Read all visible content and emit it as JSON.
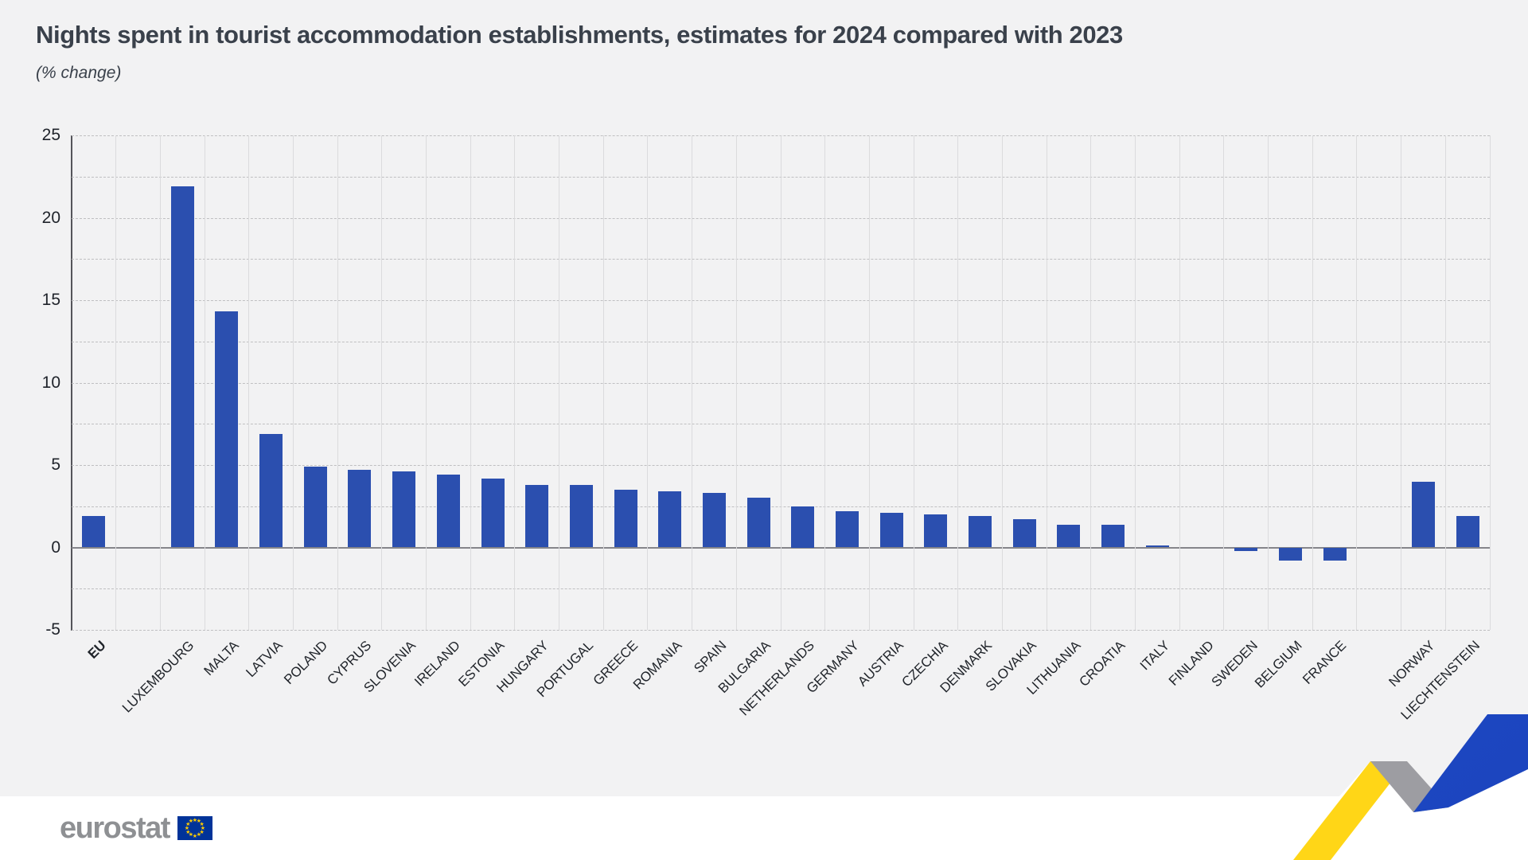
{
  "title": "Nights spent in tourist accommodation establishments, estimates for 2024 compared with 2023",
  "subtitle": "(% change)",
  "footer": {
    "logo_text": "eurostat"
  },
  "colors": {
    "background": "#F2F2F3",
    "bar": "#2B4FAF",
    "title_text": "#3A414B",
    "axis_text": "#20242B",
    "grid_dashed": "#BFBFC1",
    "grid_vertical": "#DBDBDD",
    "zero_line": "#85858A",
    "axis_line": "#55555A",
    "footer_background": "#FFFFFF",
    "logo_gray": "#8E9093",
    "flag_blue": "#003399",
    "flag_stars": "#FFCC00",
    "ribbon_yellow": "#FFD617",
    "ribbon_blue": "#2458D2"
  },
  "chart_data": {
    "type": "bar",
    "title": "Nights spent in tourist accommodation establishments, estimates for 2024 compared with 2023",
    "subtitle": "(% change)",
    "xlabel": "",
    "ylabel": "% change",
    "ylim": [
      -5,
      25
    ],
    "ytick_labels": [
      25,
      20,
      15,
      10,
      5,
      0,
      -5
    ],
    "gridline_step": 2.5,
    "grid": true,
    "legend": false,
    "categories": [
      "EU",
      "LUXEMBOURG",
      "MALTA",
      "LATVIA",
      "POLAND",
      "CYPRUS",
      "SLOVENIA",
      "IRELAND",
      "ESTONIA",
      "HUNGARY",
      "PORTUGAL",
      "GREECE",
      "ROMANIA",
      "SPAIN",
      "BULGARIA",
      "NETHERLANDS",
      "GERMANY",
      "AUSTRIA",
      "CZECHIA",
      "DENMARK",
      "SLOVAKIA",
      "LITHUANIA",
      "CROATIA",
      "ITALY",
      "FINLAND",
      "SWEDEN",
      "BELGIUM",
      "FRANCE",
      "NORWAY",
      "LIECHTENSTEIN"
    ],
    "values": [
      1.9,
      21.9,
      14.3,
      6.9,
      4.9,
      4.7,
      4.6,
      4.4,
      4.2,
      3.8,
      3.8,
      3.5,
      3.4,
      3.3,
      3.0,
      2.5,
      2.2,
      2.1,
      2.0,
      1.9,
      1.7,
      1.4,
      1.4,
      0.1,
      0.0,
      -0.2,
      -0.8,
      -0.8,
      4.0,
      1.9
    ],
    "bars": [
      {
        "label": "EU",
        "value": 1.9,
        "bold": true
      },
      {
        "label": "LUXEMBOURG",
        "value": 21.9,
        "gap_before": true
      },
      {
        "label": "MALTA",
        "value": 14.3
      },
      {
        "label": "LATVIA",
        "value": 6.9
      },
      {
        "label": "POLAND",
        "value": 4.9
      },
      {
        "label": "CYPRUS",
        "value": 4.7
      },
      {
        "label": "SLOVENIA",
        "value": 4.6
      },
      {
        "label": "IRELAND",
        "value": 4.4
      },
      {
        "label": "ESTONIA",
        "value": 4.2
      },
      {
        "label": "HUNGARY",
        "value": 3.8
      },
      {
        "label": "PORTUGAL",
        "value": 3.8
      },
      {
        "label": "GREECE",
        "value": 3.5
      },
      {
        "label": "ROMANIA",
        "value": 3.4
      },
      {
        "label": "SPAIN",
        "value": 3.3
      },
      {
        "label": "BULGARIA",
        "value": 3.0
      },
      {
        "label": "NETHERLANDS",
        "value": 2.5
      },
      {
        "label": "GERMANY",
        "value": 2.2
      },
      {
        "label": "AUSTRIA",
        "value": 2.1
      },
      {
        "label": "CZECHIA",
        "value": 2.0
      },
      {
        "label": "DENMARK",
        "value": 1.9
      },
      {
        "label": "SLOVAKIA",
        "value": 1.7
      },
      {
        "label": "LITHUANIA",
        "value": 1.4
      },
      {
        "label": "CROATIA",
        "value": 1.4
      },
      {
        "label": "ITALY",
        "value": 0.1
      },
      {
        "label": "FINLAND",
        "value": 0.0
      },
      {
        "label": "SWEDEN",
        "value": -0.2
      },
      {
        "label": "BELGIUM",
        "value": -0.8
      },
      {
        "label": "FRANCE",
        "value": -0.8
      },
      {
        "label": "NORWAY",
        "value": 4.0,
        "gap_before": true
      },
      {
        "label": "LIECHTENSTEIN",
        "value": 1.9
      }
    ]
  }
}
